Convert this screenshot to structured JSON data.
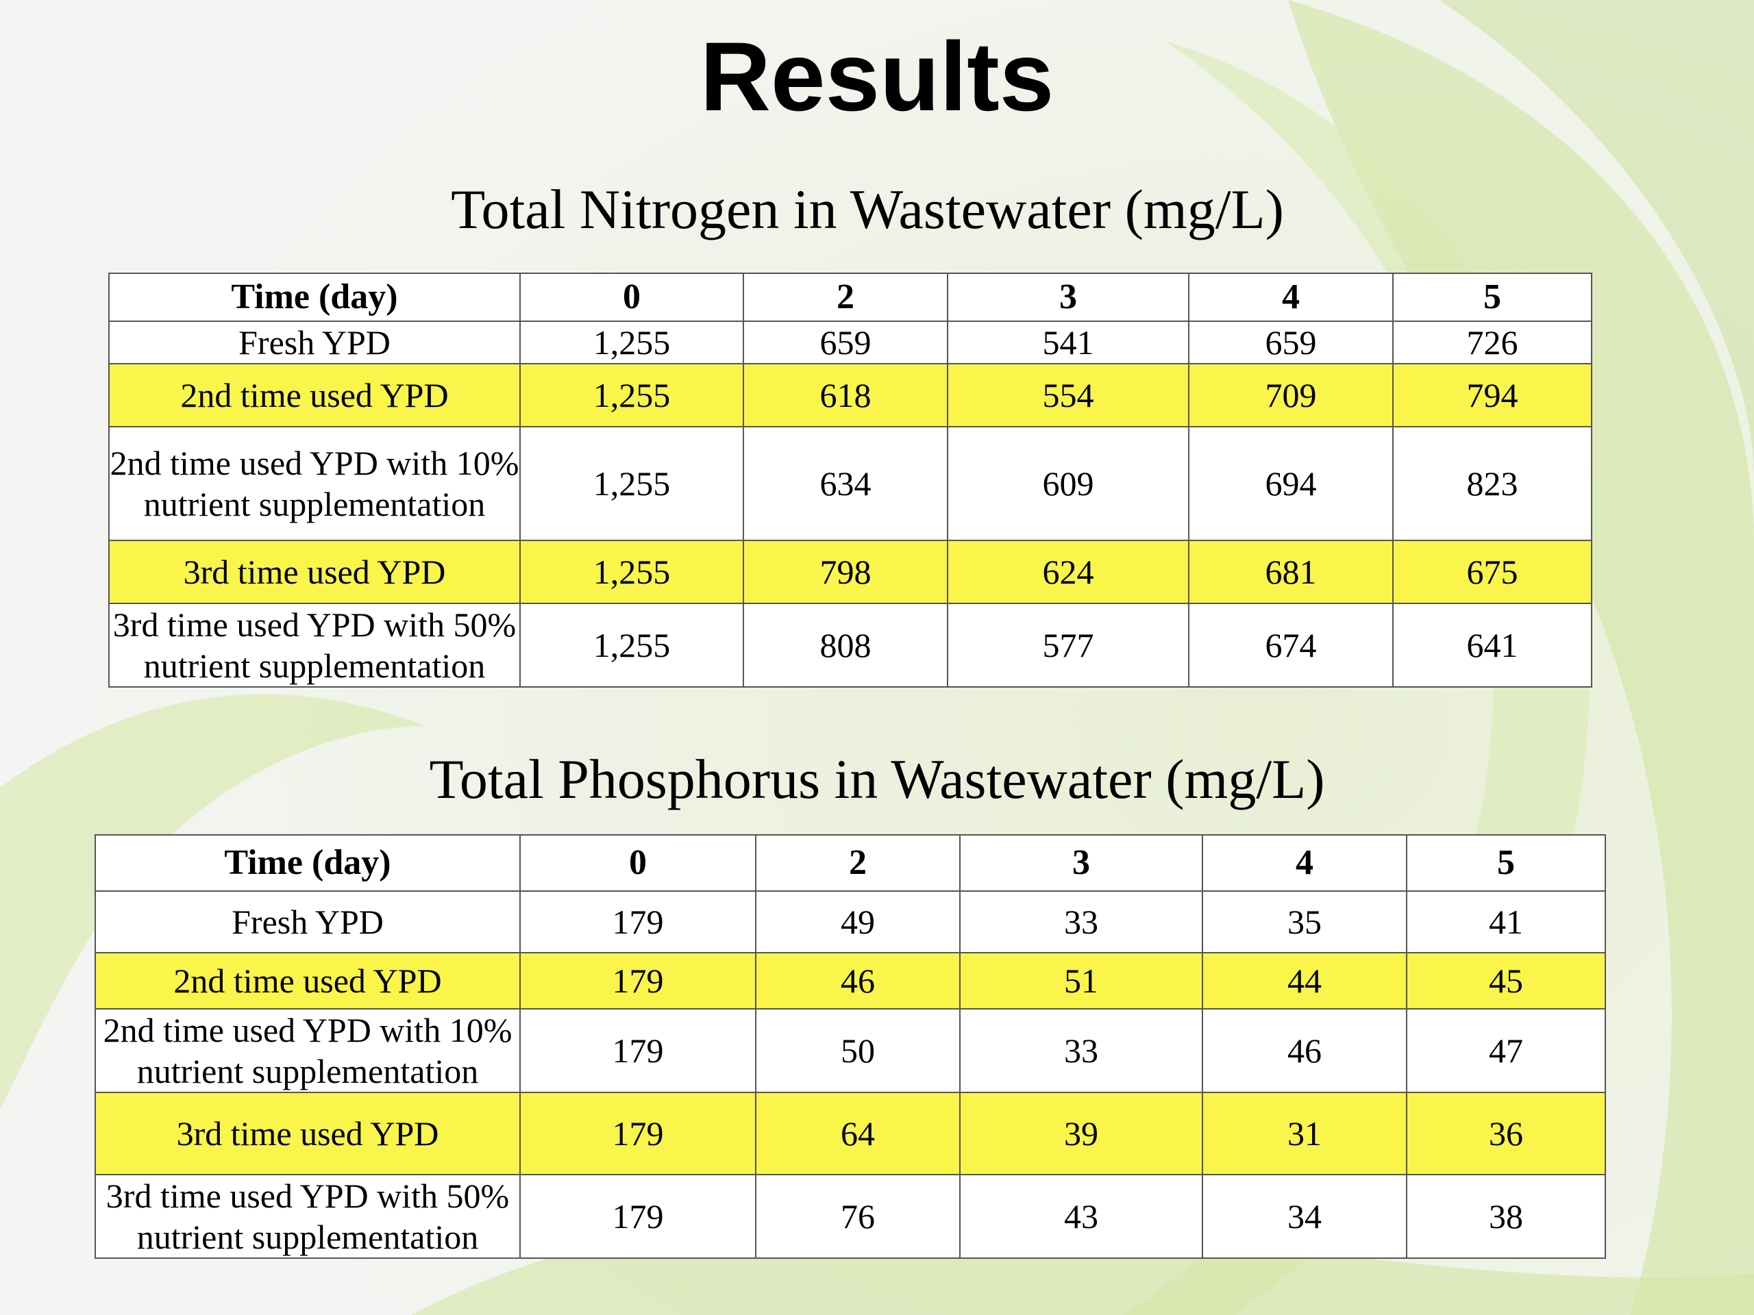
{
  "slide_title": "Results",
  "nitrogen": {
    "caption": "Total Nitrogen in Wastewater (mg/L)",
    "header": [
      "Time (day)",
      "0",
      "2",
      "3",
      "4",
      "5"
    ],
    "rows": [
      {
        "label_1": "Fresh YPD",
        "label_2": "",
        "values": [
          "1,255",
          "659",
          "541",
          "659",
          "726"
        ]
      },
      {
        "label_1": "2nd time used YPD",
        "label_2": "",
        "values": [
          "1,255",
          "618",
          "554",
          "709",
          "794"
        ]
      },
      {
        "label_1": "2nd time used YPD with 10%",
        "label_2": "nutrient supplementation",
        "values": [
          "1,255",
          "634",
          "609",
          "694",
          "823"
        ]
      },
      {
        "label_1": "3rd time used YPD",
        "label_2": "",
        "values": [
          "1,255",
          "798",
          "624",
          "681",
          "675"
        ]
      },
      {
        "label_1": "3rd time used YPD with 50%",
        "label_2": "nutrient supplementation",
        "values": [
          "1,255",
          "808",
          "577",
          "674",
          "641"
        ]
      }
    ]
  },
  "phosphorus": {
    "caption": "Total Phosphorus in Wastewater (mg/L)",
    "header": [
      "Time (day)",
      "0",
      "2",
      "3",
      "4",
      "5"
    ],
    "rows": [
      {
        "label_1": "Fresh YPD",
        "label_2": "",
        "values": [
          "179",
          "49",
          "33",
          "35",
          "41"
        ]
      },
      {
        "label_1": "2nd time used YPD",
        "label_2": "",
        "values": [
          "179",
          "46",
          "51",
          "44",
          "45"
        ]
      },
      {
        "label_1": "2nd time used YPD with 10%",
        "label_2": "nutrient supplementation",
        "values": [
          "179",
          "50",
          "33",
          "46",
          "47"
        ]
      },
      {
        "label_1": "3rd time used YPD",
        "label_2": "",
        "values": [
          "179",
          "64",
          "39",
          "31",
          "36"
        ]
      },
      {
        "label_1": "3rd time used YPD with 50%",
        "label_2": "nutrient supplementation",
        "values": [
          "179",
          "76",
          "43",
          "34",
          "38"
        ]
      }
    ]
  },
  "colors": {
    "highlight": "#f9f54a",
    "background": "#f2f3f1",
    "swoosh": "#c9de8c"
  }
}
